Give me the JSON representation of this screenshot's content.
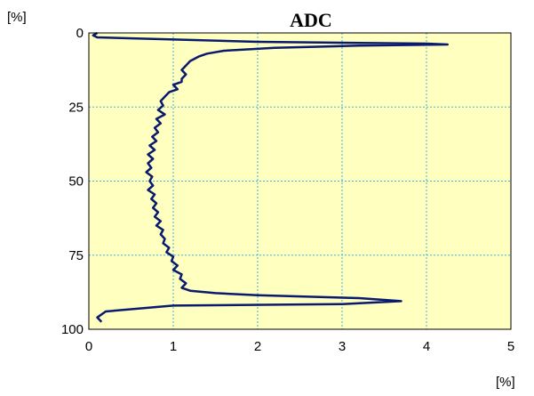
{
  "chart_data": {
    "type": "line",
    "title": "ADC",
    "x_unit": "[%]",
    "y_unit": "[%]",
    "xlim": [
      0,
      5
    ],
    "ylim": [
      0,
      100
    ],
    "y_inverted": true,
    "x_ticks": [
      "0",
      "1",
      "2",
      "3",
      "4",
      "5"
    ],
    "y_ticks": [
      "0",
      "25",
      "50",
      "75",
      "100"
    ],
    "grid": true,
    "colors": {
      "plot_background": "#ffffc0",
      "grid": "#40b0e0",
      "line": "#0a1a6e",
      "frame": "#000000"
    },
    "series": [
      {
        "x": [
          0.1,
          0.05,
          0.1,
          2.0,
          4.0,
          4.25,
          3.2,
          2.2,
          1.6,
          1.4,
          1.3,
          1.2,
          1.15,
          1.1,
          1.15,
          1.1,
          1.1,
          1.0,
          1.05,
          0.95,
          0.9,
          0.85,
          0.88,
          0.82,
          0.9,
          0.8,
          0.85,
          0.78,
          0.82,
          0.75,
          0.8,
          0.72,
          0.78,
          0.7,
          0.76,
          0.7,
          0.74,
          0.68,
          0.75,
          0.72,
          0.76,
          0.7,
          0.78,
          0.74,
          0.8,
          0.76,
          0.82,
          0.78,
          0.85,
          0.8,
          0.88,
          0.85,
          0.9,
          0.88,
          0.95,
          0.92,
          1.0,
          0.98,
          1.05,
          1.0,
          1.1,
          1.08,
          1.15,
          1.1,
          1.2,
          1.5,
          2.0,
          3.2,
          3.7,
          3.0,
          1.0,
          0.2,
          0.1,
          0.15
        ],
        "y": [
          0,
          0.8,
          1.5,
          3.0,
          3.6,
          3.9,
          4.3,
          5.0,
          6.0,
          7.0,
          8.0,
          9.5,
          11.0,
          12.5,
          14.0,
          15.5,
          16.5,
          17.5,
          19.0,
          20.0,
          21.5,
          23.0,
          24.5,
          26.0,
          27.5,
          29.0,
          30.5,
          32.0,
          33.5,
          35.0,
          36.5,
          38.0,
          39.5,
          41.0,
          42.5,
          44.0,
          45.5,
          47.0,
          48.5,
          50.0,
          51.5,
          53.0,
          54.5,
          56.0,
          57.5,
          59.0,
          60.5,
          62.0,
          63.5,
          65.0,
          66.5,
          68.0,
          69.5,
          71.0,
          72.5,
          74.0,
          75.5,
          77.0,
          78.5,
          80.0,
          81.5,
          83.0,
          84.5,
          86.0,
          87.0,
          87.8,
          88.5,
          89.5,
          90.5,
          91.5,
          92.0,
          94.0,
          96.0,
          97.5
        ]
      }
    ]
  }
}
